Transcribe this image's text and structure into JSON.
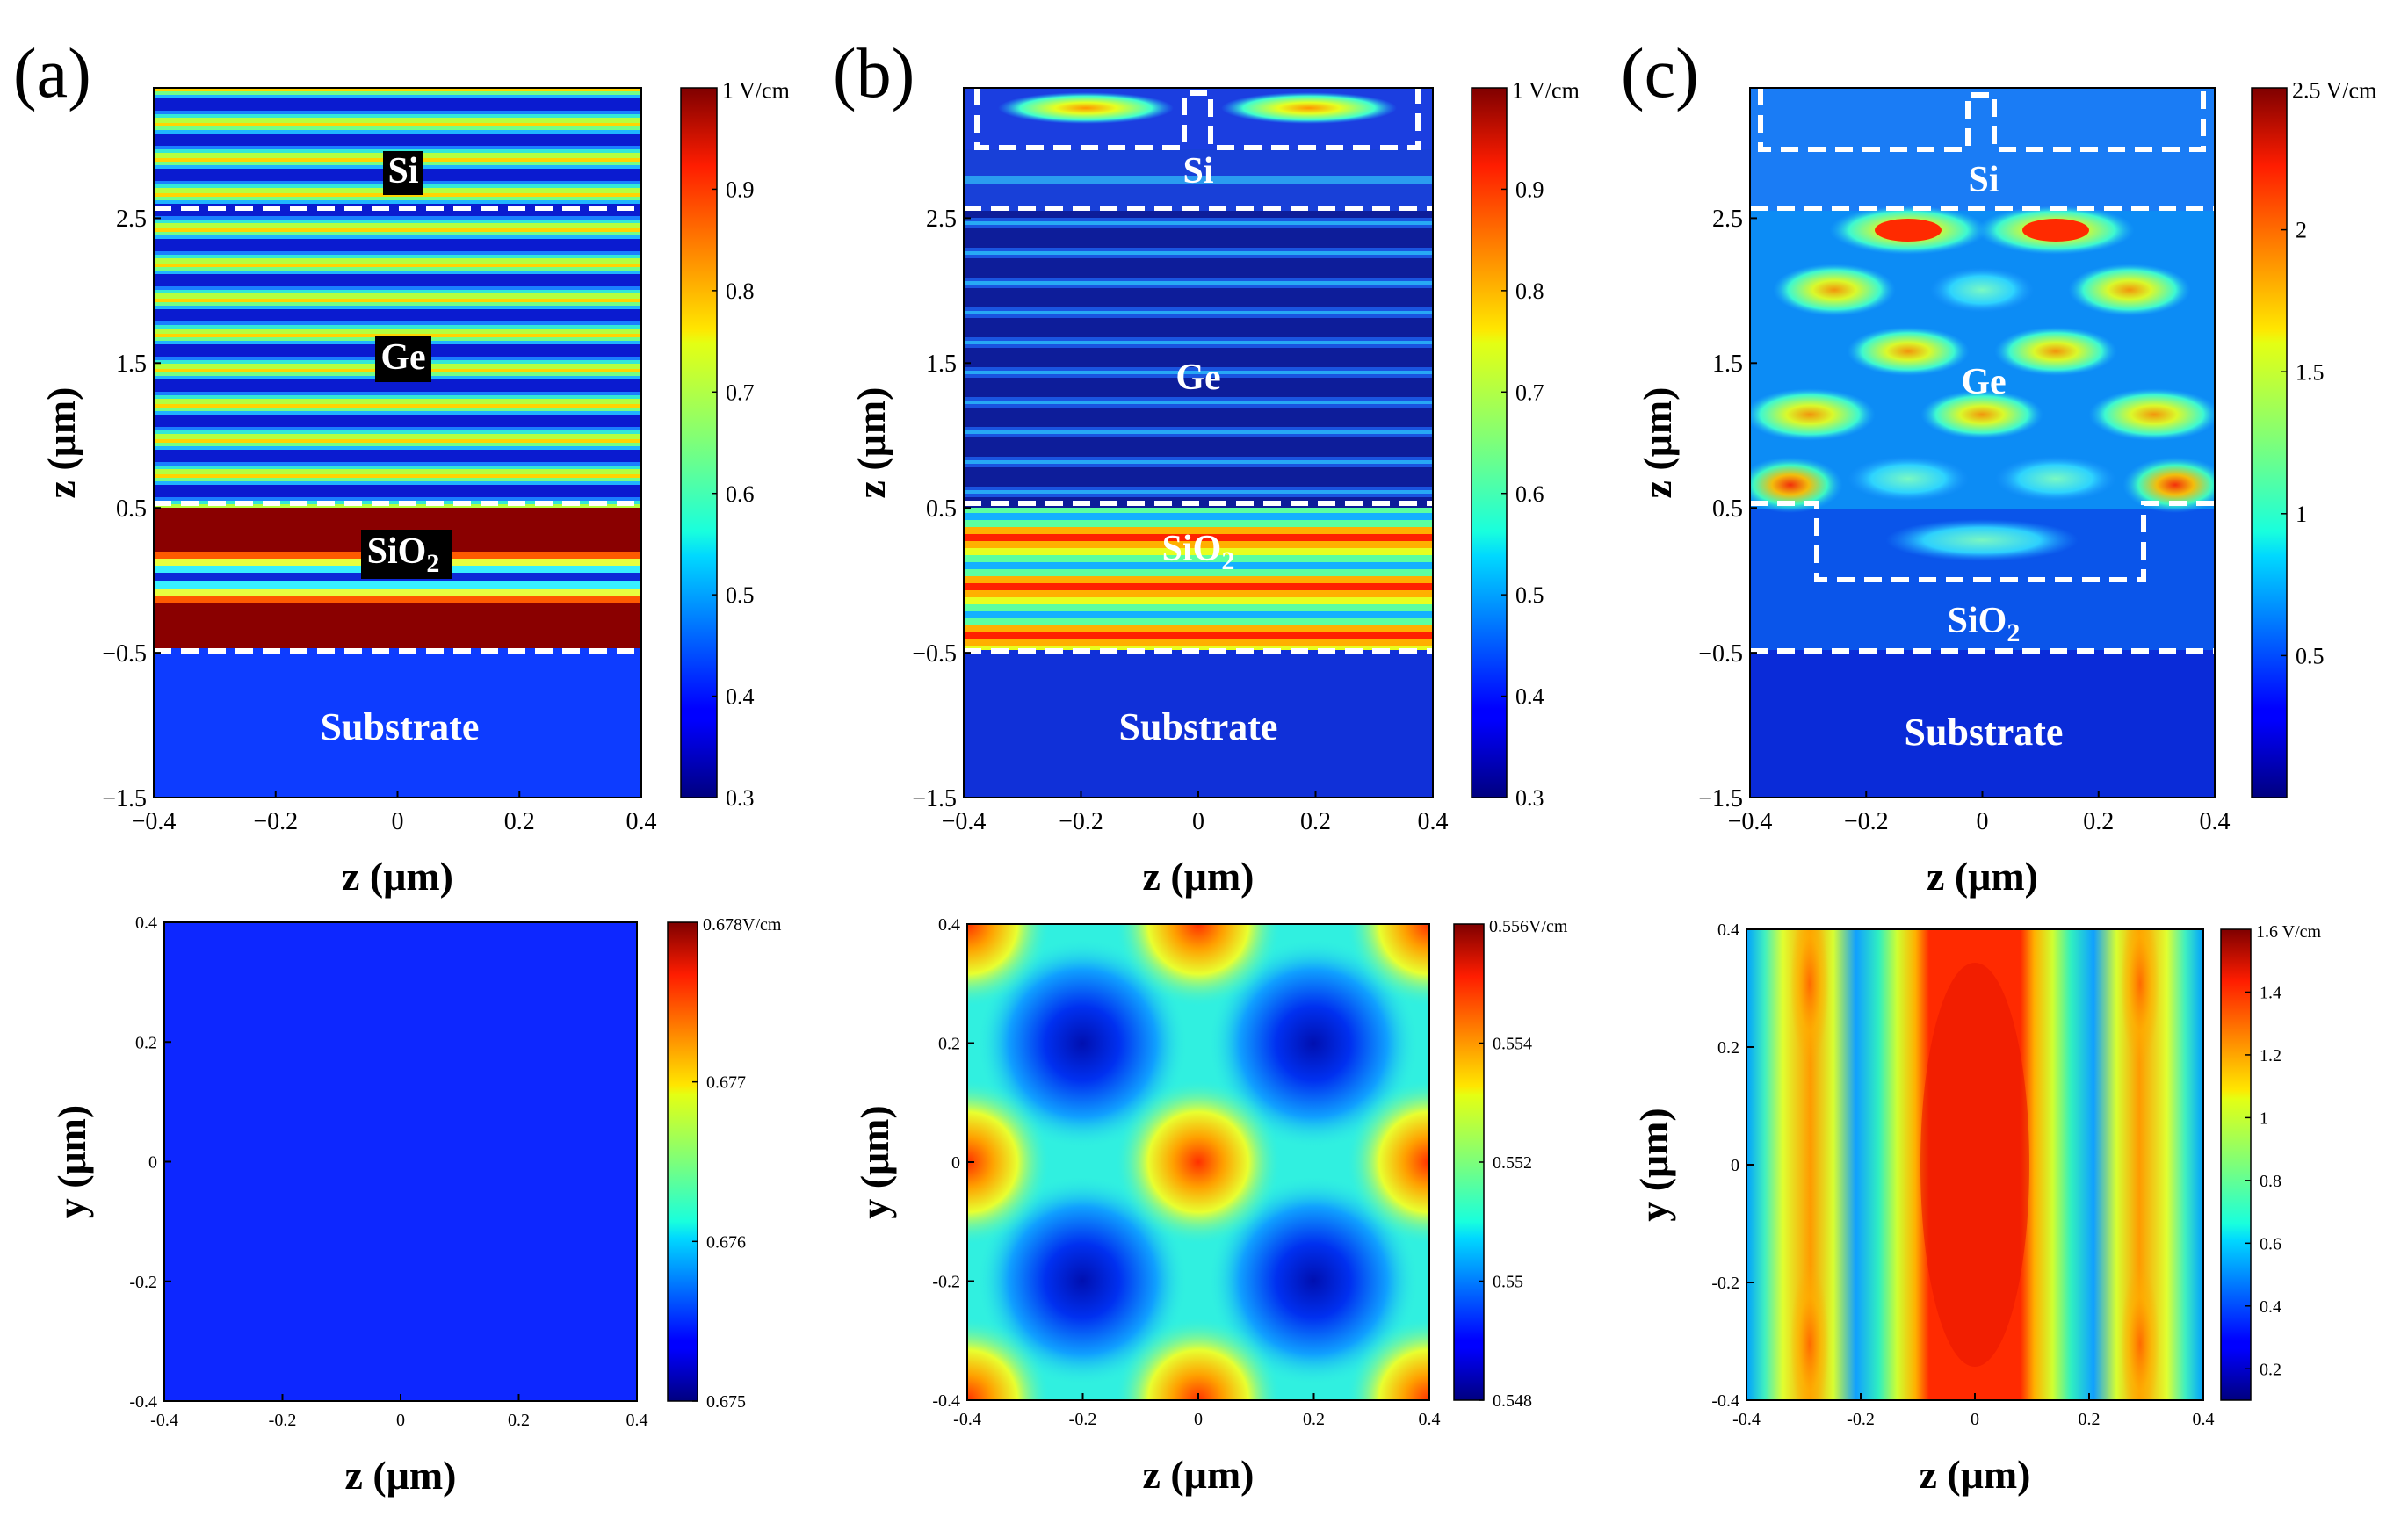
{
  "figure": {
    "panels": [
      {
        "id": "a",
        "label": "(a)"
      },
      {
        "id": "b",
        "label": "(b)"
      },
      {
        "id": "c",
        "label": "(c)"
      }
    ]
  },
  "chart_data": [
    {
      "type": "heatmap",
      "panel": "(a)",
      "xlabel": "z (μm)",
      "ylabel": "z (μm)",
      "xlim": [
        -0.4,
        0.4
      ],
      "ylim": [
        -1.5,
        3.4
      ],
      "xticks": [
        -0.4,
        -0.2,
        0,
        0.2,
        0.4
      ],
      "xtick_labels": [
        "−0.4",
        "−0.2",
        "0",
        "0.2",
        "0.4"
      ],
      "yticks": [
        -1.5,
        -0.5,
        0.5,
        1.5,
        2.5
      ],
      "ytick_labels": [
        "−1.5",
        "−0.5",
        "0.5",
        "1.5",
        "2.5"
      ],
      "colorbar": {
        "min": 0.3,
        "max": 1.0,
        "ticks": [
          0.3,
          0.4,
          0.5,
          0.6,
          0.7,
          0.8,
          0.9
        ],
        "max_label": "1 V/cm"
      },
      "regions": [
        {
          "name": "Si",
          "label": "Si",
          "y_range": [
            2.5,
            3.4
          ]
        },
        {
          "name": "Ge",
          "label": "Ge",
          "y_range": [
            0.5,
            2.5
          ]
        },
        {
          "name": "SiO2",
          "label": "SiO",
          "sub": "2",
          "y_range": [
            -0.5,
            0.5
          ]
        },
        {
          "name": "Substrate",
          "label": "Substrate",
          "y_range": [
            -1.5,
            -0.5
          ]
        }
      ],
      "layer_boundaries": [
        2.5,
        0.5,
        -0.5
      ]
    },
    {
      "type": "heatmap",
      "panel": "(b)",
      "xlabel": "z (μm)",
      "ylabel": "z (μm)",
      "xlim": [
        -0.4,
        0.4
      ],
      "ylim": [
        -1.5,
        3.4
      ],
      "xticks": [
        -0.4,
        -0.2,
        0,
        0.2,
        0.4
      ],
      "xtick_labels": [
        "−0.4",
        "−0.2",
        "0",
        "0.2",
        "0.4"
      ],
      "yticks": [
        -1.5,
        -0.5,
        0.5,
        1.5,
        2.5
      ],
      "ytick_labels": [
        "−1.5",
        "−0.5",
        "0.5",
        "1.5",
        "2.5"
      ],
      "colorbar": {
        "min": 0.3,
        "max": 1.0,
        "ticks": [
          0.3,
          0.4,
          0.5,
          0.6,
          0.7,
          0.8,
          0.9
        ],
        "max_label": "1 V/cm"
      },
      "regions": [
        {
          "name": "Si",
          "label": "Si",
          "y_range": [
            2.5,
            3.4
          ]
        },
        {
          "name": "Ge",
          "label": "Ge",
          "y_range": [
            0.5,
            2.5
          ]
        },
        {
          "name": "SiO2",
          "label": "SiO",
          "sub": "2",
          "y_range": [
            -0.5,
            0.5
          ]
        },
        {
          "name": "Substrate",
          "label": "Substrate",
          "y_range": [
            -1.5,
            -0.5
          ]
        }
      ],
      "layer_boundaries": [
        2.5,
        0.5,
        -0.5
      ]
    },
    {
      "type": "heatmap",
      "panel": "(c)",
      "xlabel": "z (μm)",
      "ylabel": "z (μm)",
      "xlim": [
        -0.4,
        0.4
      ],
      "ylim": [
        -1.5,
        3.4
      ],
      "xticks": [
        -0.4,
        -0.2,
        0,
        0.2,
        0.4
      ],
      "xtick_labels": [
        "−0.4",
        "−0.2",
        "0",
        "0.2",
        "0.4"
      ],
      "yticks": [
        -1.5,
        -0.5,
        0.5,
        1.5,
        2.5
      ],
      "ytick_labels": [
        "−1.5",
        "−0.5",
        "0.5",
        "1.5",
        "2.5"
      ],
      "colorbar": {
        "min": 0,
        "max": 2.5,
        "ticks": [
          0.5,
          1,
          1.5,
          2
        ],
        "max_label": "2.5 V/cm"
      },
      "regions": [
        {
          "name": "Si",
          "label": "Si",
          "y_range": [
            2.5,
            3.4
          ]
        },
        {
          "name": "Ge",
          "label": "Ge",
          "y_range": [
            0.5,
            2.5
          ]
        },
        {
          "name": "SiO2",
          "label": "SiO",
          "sub": "2",
          "y_range": [
            -0.5,
            0.5
          ]
        },
        {
          "name": "Substrate",
          "label": "Substrate",
          "y_range": [
            -1.5,
            -0.5
          ]
        }
      ],
      "layer_boundaries": [
        2.5,
        0.5,
        -0.5
      ]
    },
    {
      "type": "heatmap",
      "panel": "(a) bottom",
      "xlabel": "z (μm)",
      "ylabel": "y (μm)",
      "xlim": [
        -0.4,
        0.4
      ],
      "ylim": [
        -0.4,
        0.4
      ],
      "xticks": [
        -0.4,
        -0.2,
        0,
        0.2,
        0.4
      ],
      "xtick_labels": [
        "-0.4",
        "-0.2",
        "0",
        "0.2",
        "0.4"
      ],
      "yticks": [
        -0.4,
        -0.2,
        0,
        0.2,
        0.4
      ],
      "ytick_labels": [
        "-0.4",
        "-0.2",
        "0",
        "0.2",
        "0.4"
      ],
      "colorbar": {
        "min": 0.675,
        "max": 0.678,
        "ticks": [
          0.675,
          0.676,
          0.677
        ],
        "max_label": "0.678V/cm"
      }
    },
    {
      "type": "heatmap",
      "panel": "(b) bottom",
      "xlabel": "z (μm)",
      "ylabel": "y (μm)",
      "xlim": [
        -0.4,
        0.4
      ],
      "ylim": [
        -0.4,
        0.4
      ],
      "xticks": [
        -0.4,
        -0.2,
        0,
        0.2,
        0.4
      ],
      "xtick_labels": [
        "-0.4",
        "-0.2",
        "0",
        "0.2",
        "0.4"
      ],
      "yticks": [
        -0.4,
        -0.2,
        0,
        0.2,
        0.4
      ],
      "ytick_labels": [
        "-0.4",
        "-0.2",
        "0",
        "0.2",
        "0.4"
      ],
      "colorbar": {
        "min": 0.548,
        "max": 0.556,
        "ticks": [
          0.548,
          0.55,
          0.552,
          0.554
        ],
        "max_label": "0.556V/cm"
      }
    },
    {
      "type": "heatmap",
      "panel": "(c) bottom",
      "xlabel": "z (μm)",
      "ylabel": "y (μm)",
      "xlim": [
        -0.4,
        0.4
      ],
      "ylim": [
        -0.4,
        0.4
      ],
      "xticks": [
        -0.4,
        -0.2,
        0,
        0.2,
        0.4
      ],
      "xtick_labels": [
        "-0.4",
        "-0.2",
        "0",
        "0.2",
        "0.4"
      ],
      "yticks": [
        -0.4,
        -0.2,
        0,
        0.2,
        0.4
      ],
      "ytick_labels": [
        "-0.4",
        "-0.2",
        "0",
        "0.2",
        "0.4"
      ],
      "colorbar": {
        "min": 0.1,
        "max": 1.6,
        "ticks": [
          0.2,
          0.4,
          0.6,
          0.8,
          1,
          1.2,
          1.4
        ],
        "max_label": "1.6 V/cm"
      }
    }
  ]
}
